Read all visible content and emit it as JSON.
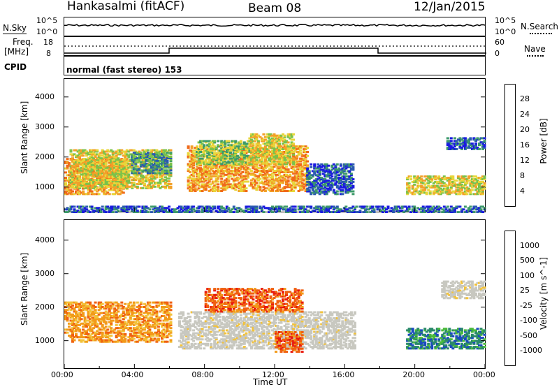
{
  "header": {
    "station": "Hankasalmi (fitACF)",
    "beam": "Beam 08",
    "date": "12/Jan/2015"
  },
  "nsky_panel": {
    "left_label": "N.Sky",
    "right_label": "N.Search",
    "left_ticks": [
      "10^5",
      "10^0"
    ],
    "right_ticks": [
      "10^5",
      "10^0"
    ]
  },
  "freq_panel": {
    "left_label_1": "Freq.",
    "left_label_2": "[MHz]",
    "right_label": "Nave",
    "left_ticks": [
      "18",
      "8"
    ],
    "right_ticks": [
      "60",
      "0"
    ]
  },
  "cpid_panel": {
    "label": "CPID",
    "mode": "normal (fast stereo) 153"
  },
  "colors": {
    "velocity_gray": "#c8c8c0",
    "ground_scatter_note": "grey"
  },
  "chart_data": [
    {
      "type": "heatmap",
      "title": "",
      "quantity": "Power",
      "xlabel": "Time UT",
      "ylabel": "Slant Range [km]",
      "xticks": [
        "00:00",
        "04:00",
        "08:00",
        "12:00",
        "16:00",
        "20:00",
        "00:00"
      ],
      "xlim_hours": [
        0,
        24
      ],
      "yticks": [
        1000,
        2000,
        3000,
        4000
      ],
      "ylim": [
        180,
        4600
      ],
      "colorbar": {
        "label": "Power [dB]",
        "ticks": [
          4,
          8,
          12,
          16,
          20,
          24,
          28
        ],
        "colors": [
          "#1a1ae0",
          "#2a5ab0",
          "#3d9a6a",
          "#7ac24a",
          "#e8d63a",
          "#f2a028",
          "#f06a1a",
          "#e81a10"
        ]
      },
      "regions": [
        {
          "t": [
            0,
            3.6
          ],
          "r": [
            800,
            2000
          ],
          "level": 24
        },
        {
          "t": [
            0.3,
            6
          ],
          "r": [
            1000,
            2300
          ],
          "level": 20
        },
        {
          "t": [
            3.8,
            6
          ],
          "r": [
            1500,
            2200
          ],
          "level": 12
        },
        {
          "t": [
            7,
            13.8
          ],
          "r": [
            900,
            2400
          ],
          "level": 24
        },
        {
          "t": [
            7.5,
            10.5
          ],
          "r": [
            1800,
            2600
          ],
          "level": 16
        },
        {
          "t": [
            10.5,
            13
          ],
          "r": [
            1800,
            2800
          ],
          "level": 20
        },
        {
          "t": [
            13.8,
            16.5
          ],
          "r": [
            800,
            1800
          ],
          "level": 8
        },
        {
          "t": [
            19.5,
            24
          ],
          "r": [
            800,
            1400
          ],
          "level": 20
        },
        {
          "t": [
            21.8,
            24
          ],
          "r": [
            2300,
            2700
          ],
          "level": 8
        },
        {
          "t": [
            0,
            24
          ],
          "r": [
            200,
            400
          ],
          "level": 8
        }
      ]
    },
    {
      "type": "heatmap",
      "title": "",
      "quantity": "Velocity",
      "xlabel": "Time UT",
      "ylabel": "Slant Range [km]",
      "xticks": [
        "00:00",
        "04:00",
        "08:00",
        "12:00",
        "16:00",
        "20:00",
        "00:00"
      ],
      "xlim_hours": [
        0,
        24
      ],
      "yticks": [
        1000,
        2000,
        3000,
        4000
      ],
      "ylim": [
        180,
        4600
      ],
      "colorbar": {
        "label": "Velocity [m s^-1]",
        "ticks": [
          1000,
          500,
          100,
          25,
          -25,
          -100,
          -500,
          -1000
        ],
        "colors": [
          "#1a4ac0",
          "#2a8a6a",
          "#4abb3a",
          "#9ad05a",
          "#c8c8c0",
          "#f2c23a",
          "#f29a1a",
          "#f06010",
          "#e81a10"
        ]
      },
      "regions": [
        {
          "t": [
            0,
            6
          ],
          "r": [
            1000,
            2200
          ],
          "v": -100
        },
        {
          "t": [
            6.5,
            16.5
          ],
          "r": [
            800,
            1900
          ],
          "v": 0
        },
        {
          "t": [
            8,
            13.5
          ],
          "r": [
            1900,
            2600
          ],
          "v": -500
        },
        {
          "t": [
            12,
            13.5
          ],
          "r": [
            700,
            1300
          ],
          "v": -500
        },
        {
          "t": [
            19.5,
            24
          ],
          "r": [
            800,
            1400
          ],
          "v": 500
        },
        {
          "t": [
            21.5,
            24
          ],
          "r": [
            2300,
            2800
          ],
          "v": 0
        }
      ]
    }
  ]
}
